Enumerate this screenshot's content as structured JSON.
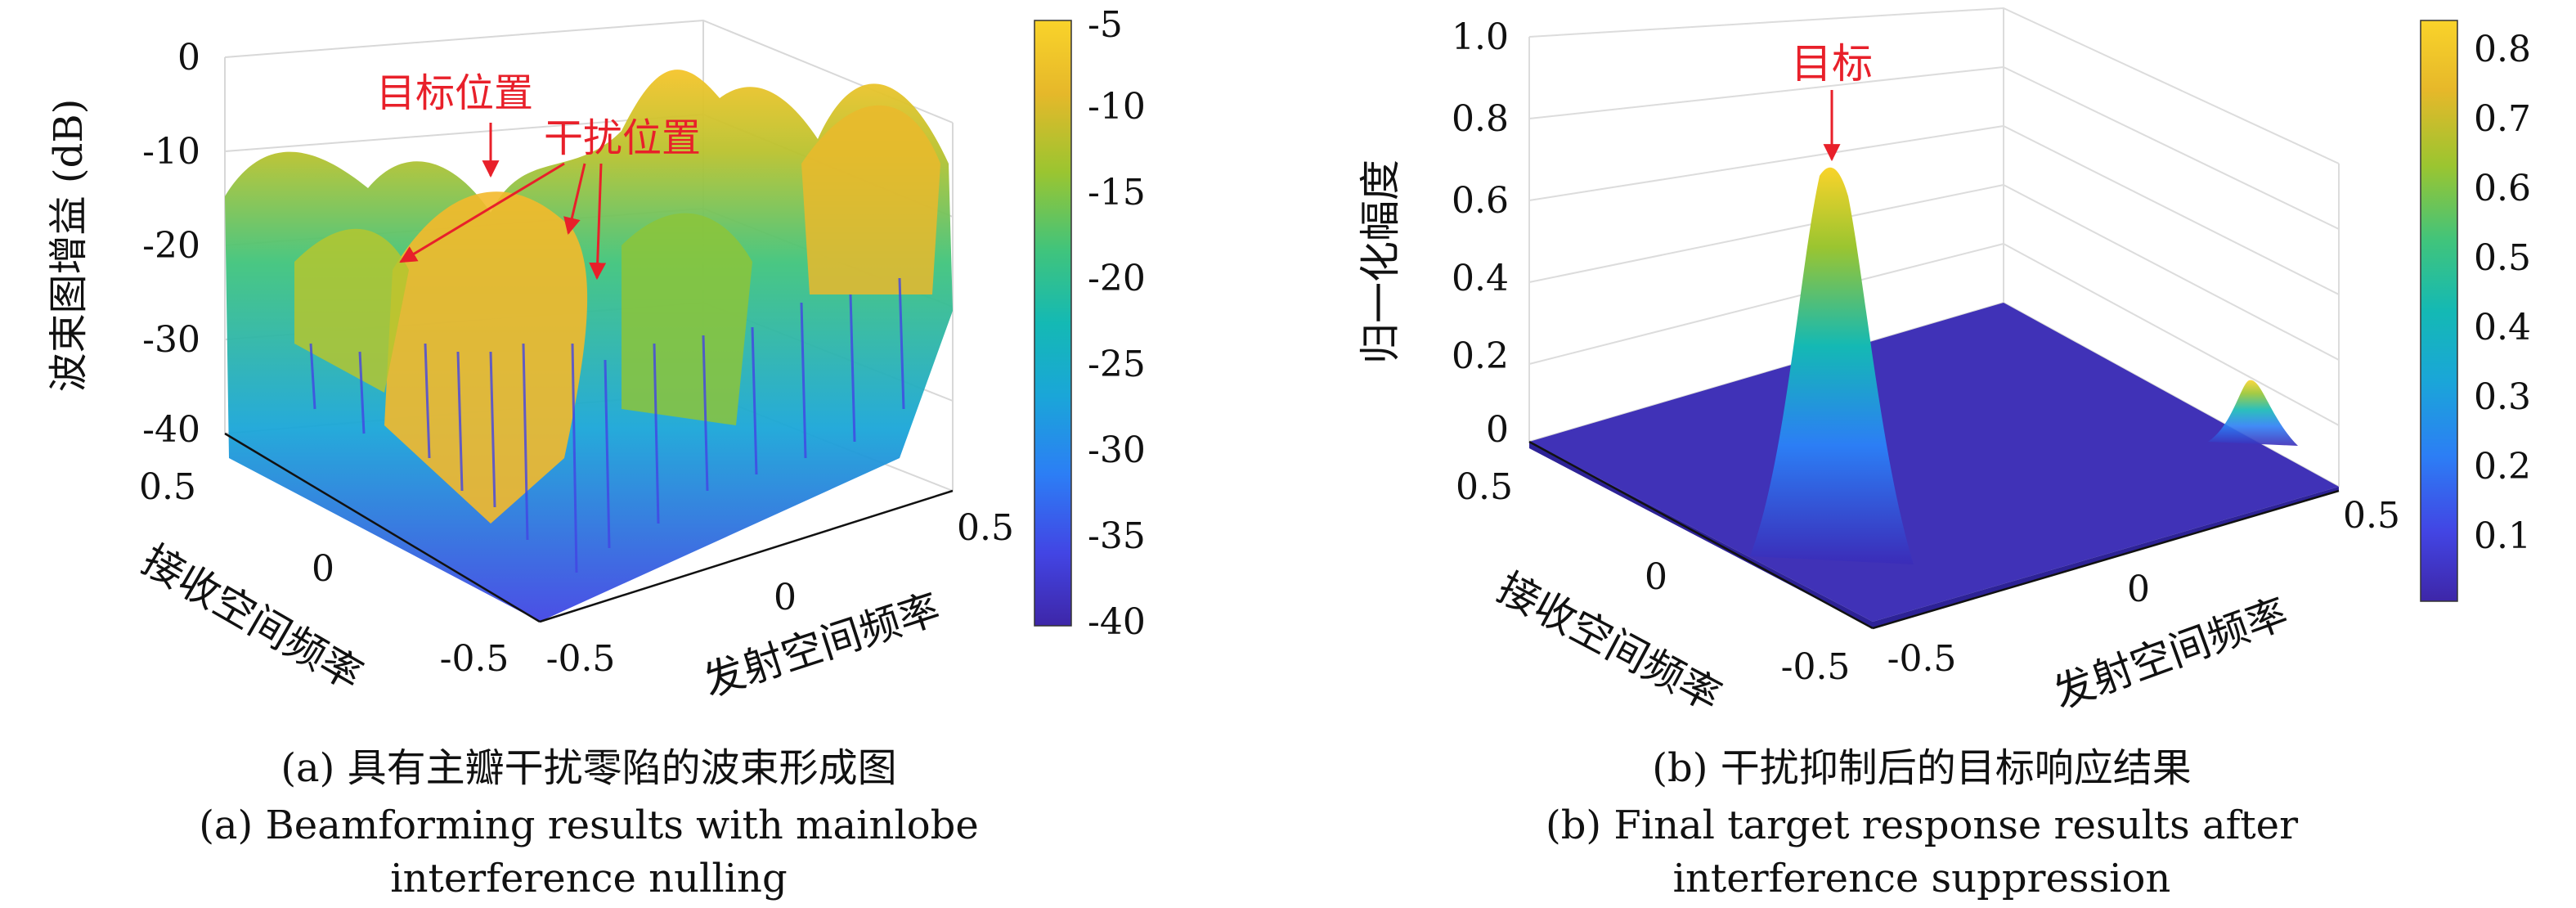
{
  "chart_data": [
    {
      "type": "surface",
      "panel": "a",
      "zlabel": "波束图增益 (dB)",
      "xlabel": "接收空间频率",
      "ylabel": "发射空间频率",
      "zticks": [
        "0",
        "-10",
        "-20",
        "-30",
        "-40"
      ],
      "xticks": [
        "0.5",
        "0",
        "-0.5"
      ],
      "yticks": [
        "-0.5",
        "0",
        "0.5"
      ],
      "zlim": [
        -40,
        0
      ],
      "xlim": [
        -0.5,
        0.5
      ],
      "ylim": [
        -0.5,
        0.5
      ],
      "colorbar": {
        "ticks": [
          "-5",
          "-10",
          "-15",
          "-20",
          "-25",
          "-30",
          "-35",
          "-40"
        ],
        "range": [
          -40,
          -5
        ]
      },
      "annotations": [
        {
          "text": "目标位置",
          "color": "#e8202a"
        },
        {
          "text": "干扰位置",
          "color": "#e8202a"
        }
      ],
      "caption_cn": "(a) 具有主瓣干扰零陷的波束形成图",
      "caption_en_line1": "(a) Beamforming results with mainlobe",
      "caption_en_line2": "interference nulling"
    },
    {
      "type": "surface",
      "panel": "b",
      "zlabel": "归一化幅度",
      "xlabel": "接收空间频率",
      "ylabel": "发射空间频率",
      "zticks": [
        "1.0",
        "0.8",
        "0.6",
        "0.4",
        "0.2",
        "0"
      ],
      "xticks": [
        "0.5",
        "0",
        "-0.5"
      ],
      "yticks": [
        "-0.5",
        "0",
        "0.5"
      ],
      "zlim": [
        0,
        1
      ],
      "xlim": [
        -0.5,
        0.5
      ],
      "ylim": [
        -0.5,
        0.5
      ],
      "peaks": [
        {
          "label": "目标",
          "value": 0.67
        },
        {
          "value": 0.12
        }
      ],
      "colorbar": {
        "ticks": [
          "0.8",
          "0.7",
          "0.6",
          "0.5",
          "0.4",
          "0.3",
          "0.2",
          "0.1"
        ],
        "range": [
          0,
          0.85
        ]
      },
      "annotations": [
        {
          "text": "目标",
          "color": "#e8202a"
        }
      ],
      "caption_cn": "(b) 干扰抑制后的目标响应结果",
      "caption_en_line1": "(b) Final target response results after",
      "caption_en_line2": "interference suppression"
    }
  ]
}
